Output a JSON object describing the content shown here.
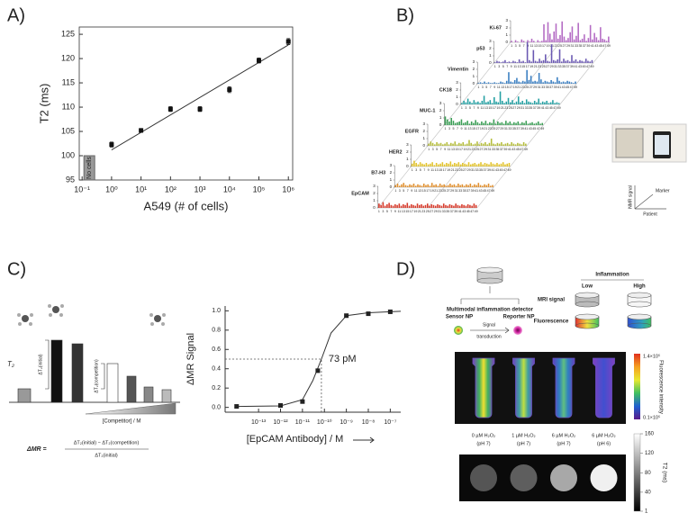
{
  "chart_data": [
    {
      "type": "scatter",
      "panel": "A)",
      "xlabel": "A549 (# of cells)",
      "ylabel": "T2 (ms)",
      "xscale": "log",
      "x": [
        1,
        10,
        100,
        1000,
        10000,
        100000,
        1000000
      ],
      "values": [
        102.3,
        105.2,
        109.6,
        109.6,
        113.6,
        119.6,
        123.5
      ],
      "errors": [
        0.5,
        0.4,
        0.5,
        0.5,
        0.6,
        0.5,
        0.6
      ],
      "fit": {
        "x": [
          1,
          1000000
        ],
        "values": [
          101.2,
          122.8
        ]
      },
      "annotation": "No cells",
      "color": "#111111",
      "xlim": [
        0.08,
        1400000
      ],
      "ylim": [
        95,
        126.5
      ],
      "xticks": [
        {
          "value": 0.1,
          "label": "10⁻¹"
        },
        {
          "value": 1,
          "label": "10⁰"
        },
        {
          "value": 10,
          "label": "10¹"
        },
        {
          "value": 100,
          "label": "10²"
        },
        {
          "value": 1000,
          "label": "10³"
        },
        {
          "value": 10000,
          "label": "10⁴"
        },
        {
          "value": 100000,
          "label": "10⁵"
        },
        {
          "value": 1000000,
          "label": "10⁶"
        }
      ],
      "yticks": [
        95,
        100,
        105,
        110,
        115,
        120,
        125
      ]
    },
    {
      "type": "bar",
      "panel": "B)",
      "categories": [
        1,
        null,
        3,
        null,
        5,
        null,
        7,
        null,
        9,
        null,
        11,
        null,
        13,
        null,
        15,
        null,
        17,
        null,
        19,
        null,
        21,
        null,
        23,
        null,
        25,
        null,
        27,
        null,
        29,
        null,
        31,
        null,
        33,
        null,
        35,
        null,
        37,
        null,
        39,
        null,
        41,
        null,
        43,
        null,
        45,
        null,
        47,
        null,
        49
      ],
      "ylim": [
        0,
        3
      ],
      "yticks": [
        0,
        1,
        2,
        3
      ],
      "axis_key": {
        "y": "NMR signal",
        "depth": "Marker",
        "x": "Patient"
      },
      "series": [
        {
          "name": "Ki-67",
          "color": "#b46cc4",
          "values": [
            0.2,
            0,
            0.3,
            0.1,
            0,
            0.4,
            0.2,
            0,
            0.3,
            0.1,
            0.5,
            0.2,
            0,
            0.3,
            0.1,
            0.2,
            2.5,
            0.3,
            2.8,
            1.2,
            0.4,
            1.5,
            2.6,
            0.5,
            1.0,
            2.9,
            0.8,
            0.3,
            0.6,
            1.4,
            2.2,
            0.4,
            0.9,
            2.7,
            0.3,
            0.5,
            1.1,
            0.2,
            0.6,
            2.4,
            0.4,
            1.3,
            0.7,
            0.3,
            2.1,
            0.5,
            0.4,
            0.2,
            0.8
          ]
        },
        {
          "name": "p53",
          "color": "#6a58b2",
          "values": [
            0.1,
            0.3,
            0.2,
            0.1,
            0.2,
            0.4,
            0.1,
            0.2,
            0.1,
            0.3,
            0.2,
            0.1,
            0.5,
            0.2,
            0.3,
            0.1,
            2.9,
            0.4,
            0.2,
            1.8,
            0.3,
            0.2,
            0.6,
            0.3,
            0.4,
            1.2,
            0.3,
            0.2,
            2.6,
            0.4,
            0.3,
            0.5,
            1.9,
            0.2,
            0.6,
            0.3,
            0.4,
            0.2,
            1.1,
            0.3,
            0.5,
            0.2,
            0.4,
            0.3,
            0.2,
            0.6,
            0.3,
            0.2,
            0.4
          ]
        },
        {
          "name": "Vimentin",
          "color": "#3b7fc2",
          "values": [
            0.1,
            0.2,
            0.1,
            0.3,
            0.1,
            0.2,
            0.1,
            0.1,
            0.2,
            0.1,
            0.1,
            0.3,
            0.2,
            0.1,
            0.4,
            1.6,
            0.3,
            0.2,
            0.5,
            0.8,
            0.3,
            0.2,
            0.4,
            0.3,
            1.9,
            0.5,
            1.1,
            0.3,
            0.4,
            0.3,
            1.5,
            0.6,
            0.2,
            0.4,
            0.3,
            0.2,
            0.5,
            0.3,
            0.2,
            0.9,
            0.4,
            0.2,
            0.3,
            0.2,
            0.4,
            0.3,
            0.2,
            0.1,
            0.3
          ]
        },
        {
          "name": "CK18",
          "color": "#25a0a3",
          "values": [
            0.2,
            0.5,
            0.3,
            0.8,
            0.4,
            0.2,
            0.6,
            0.3,
            0.4,
            0.2,
            0.5,
            1.2,
            0.3,
            0.4,
            0.6,
            0.2,
            1.0,
            0.4,
            0.3,
            1.8,
            0.5,
            0.2,
            0.4,
            0.9,
            0.3,
            0.6,
            0.2,
            0.4,
            1.1,
            0.3,
            0.5,
            0.2,
            0.7,
            0.4,
            0.3,
            0.2,
            0.5,
            0.3,
            0.8,
            0.2,
            0.4,
            0.3,
            0.5,
            0.2,
            0.3,
            0.6,
            0.2,
            0.3,
            0.2
          ]
        },
        {
          "name": "MUC-1",
          "color": "#3a9e55",
          "values": [
            1.2,
            0.8,
            0.5,
            1.0,
            0.6,
            0.3,
            0.4,
            0.5,
            0.8,
            0.3,
            0.4,
            0.6,
            0.2,
            0.5,
            0.3,
            0.7,
            0.4,
            0.2,
            0.5,
            0.3,
            0.6,
            0.2,
            0.4,
            0.3,
            0.8,
            0.2,
            0.5,
            0.3,
            0.4,
            0.2,
            0.6,
            0.3,
            0.5,
            0.2,
            0.4,
            0.3,
            0.5,
            0.2,
            0.4,
            0.3,
            0.6,
            0.2,
            0.3,
            0.4,
            0.2,
            0.3,
            0.5,
            0.2,
            0.3
          ]
        },
        {
          "name": "EGFR",
          "color": "#b5bd3c",
          "values": [
            0.3,
            0.6,
            0.4,
            0.2,
            0.5,
            0.3,
            0.4,
            0.2,
            0.3,
            0.5,
            0.2,
            0.4,
            0.3,
            0.6,
            0.2,
            0.4,
            0.3,
            0.5,
            0.2,
            0.3,
            0.8,
            0.4,
            0.2,
            0.3,
            0.6,
            0.2,
            0.4,
            0.3,
            0.5,
            0.2,
            0.4,
            1.0,
            0.3,
            0.2,
            0.4,
            0.3,
            0.5,
            0.2,
            0.3,
            0.4,
            0.2,
            0.5,
            0.3,
            0.2,
            0.4,
            0.3,
            0.2,
            0.5,
            0.3
          ]
        },
        {
          "name": "HER2",
          "color": "#e2c32c",
          "values": [
            0.4,
            0.8,
            0.5,
            0.3,
            0.6,
            0.4,
            0.3,
            0.5,
            0.3,
            0.4,
            0.6,
            0.2,
            0.5,
            0.3,
            0.4,
            0.6,
            0.3,
            0.5,
            0.4,
            0.7,
            0.3,
            0.5,
            0.4,
            0.6,
            0.3,
            0.5,
            0.4,
            0.3,
            0.6,
            0.3,
            0.4,
            0.5,
            0.3,
            0.4,
            0.6,
            0.3,
            0.5,
            0.4,
            0.3,
            0.6,
            0.4,
            0.3,
            0.5,
            0.3,
            0.4,
            0.6,
            0.3,
            0.4,
            0.5
          ]
        },
        {
          "name": "B7-H3",
          "color": "#e08f2e",
          "values": [
            0.3,
            0.5,
            0.2,
            0.4,
            0.6,
            0.3,
            0.2,
            0.4,
            0.3,
            0.5,
            0.2,
            0.4,
            0.3,
            0.2,
            0.5,
            0.3,
            0.4,
            0.2,
            0.6,
            0.3,
            0.4,
            0.2,
            0.5,
            0.3,
            0.4,
            0.2,
            0.3,
            0.5,
            0.3,
            0.4,
            0.2,
            0.5,
            0.3,
            0.4,
            0.2,
            0.4,
            0.3,
            0.5,
            0.2,
            0.4,
            0.3,
            0.6,
            0.3,
            0.2,
            0.4,
            0.3,
            0.5,
            0.2,
            0.3
          ]
        },
        {
          "name": "EpCAM",
          "color": "#d6392a",
          "values": [
            0.6,
            0.4,
            0.8,
            0.3,
            0.5,
            0.7,
            0.4,
            0.3,
            0.5,
            0.4,
            0.6,
            0.3,
            0.5,
            0.4,
            0.7,
            0.3,
            0.5,
            0.4,
            0.3,
            0.6,
            0.4,
            0.5,
            0.3,
            0.4,
            0.6,
            0.3,
            0.5,
            0.4,
            0.3,
            0.5,
            0.4,
            0.3,
            0.6,
            0.4,
            0.3,
            0.5,
            0.4,
            0.3,
            0.6,
            0.4,
            0.3,
            0.5,
            0.4,
            0.3,
            0.5,
            0.4,
            0.3,
            0.6,
            0.4
          ]
        }
      ]
    },
    {
      "type": "scatter",
      "xlabel": "[EpCAM Antibody] / M",
      "ylabel": "ΔMR Signal",
      "xscale": "log",
      "color": "#222222",
      "x": [
        1e-14,
        1e-12,
        1e-11,
        5e-11,
        1e-09,
        1e-08,
        1e-07
      ],
      "values": [
        0.01,
        0.02,
        0.06,
        0.38,
        0.95,
        0.97,
        0.99
      ],
      "fit": {
        "x": [
          1e-14,
          1e-12,
          1e-11,
          3e-11,
          7.3e-11,
          2e-10,
          1e-09,
          1e-08,
          1e-07,
          3e-07
        ],
        "values": [
          0.01,
          0.015,
          0.08,
          0.28,
          0.5,
          0.77,
          0.95,
          0.98,
          0.99,
          0.995
        ]
      },
      "ec50": {
        "x": 7.3e-11,
        "y": 0.5,
        "label": "73 pM"
      },
      "xlim": [
        3e-15,
        3e-07
      ],
      "ylim": [
        -0.05,
        1.05
      ],
      "xticks": [
        {
          "value": 1e-13,
          "label": "10⁻¹³"
        },
        {
          "value": 1e-12,
          "label": "10⁻¹²"
        },
        {
          "value": 1e-11,
          "label": "10⁻¹¹"
        },
        {
          "value": 1e-10,
          "label": "10⁻¹⁰"
        },
        {
          "value": 1e-09,
          "label": "10⁻⁹"
        },
        {
          "value": 1e-08,
          "label": "10⁻⁸"
        },
        {
          "value": 1e-07,
          "label": "10⁻⁷"
        }
      ],
      "yticks": [
        {
          "value": 0,
          "label": "0.0"
        },
        0.2,
        0.4,
        0.6,
        0.8,
        {
          "value": 1,
          "label": "1.0"
        }
      ]
    }
  ],
  "competition_diagram": {
    "panel": "C)",
    "y_label": "T₂",
    "initial": "ΔT₂(initial)",
    "competition": "ΔT₂(competition)",
    "x_label": "[Competitor] / M",
    "formula": {
      "lhs": "ΔMR  =",
      "numerator": "ΔT₂(initial) − ΔT₂(competition)",
      "denominator": "ΔT₂(initial)"
    }
  },
  "detector_diagram": {
    "panel": "D)",
    "title": "Multimodal inflammation detector",
    "sensor": "Sensor NP",
    "reporter": "Reporter NP",
    "transduction": [
      "Signal",
      "transduction"
    ],
    "inflammation": "Inflammation",
    "low": "Low",
    "high": "High",
    "mri_row": "MRI signal",
    "fluor_row": "Fluorescence",
    "fluor_colorbar": {
      "max": "1.4×10⁵",
      "min": "0.1×10⁵",
      "label": "Fluorescence intensity"
    },
    "samples": [
      {
        "conc": "0 µM H₂O₂",
        "ph": "(pH 7)"
      },
      {
        "conc": "1 µM H₂O₂",
        "ph": "(pH 7)"
      },
      {
        "conc": "6 µM H₂O₂",
        "ph": "(pH 7)"
      },
      {
        "conc": "6 µM H₂O₂",
        "ph": "(pH 6)"
      }
    ],
    "t2_colorbar": {
      "label": "T2 (ms)",
      "lim": [
        1,
        160
      ],
      "ticks": [
        160,
        120,
        80,
        40,
        1
      ]
    }
  }
}
